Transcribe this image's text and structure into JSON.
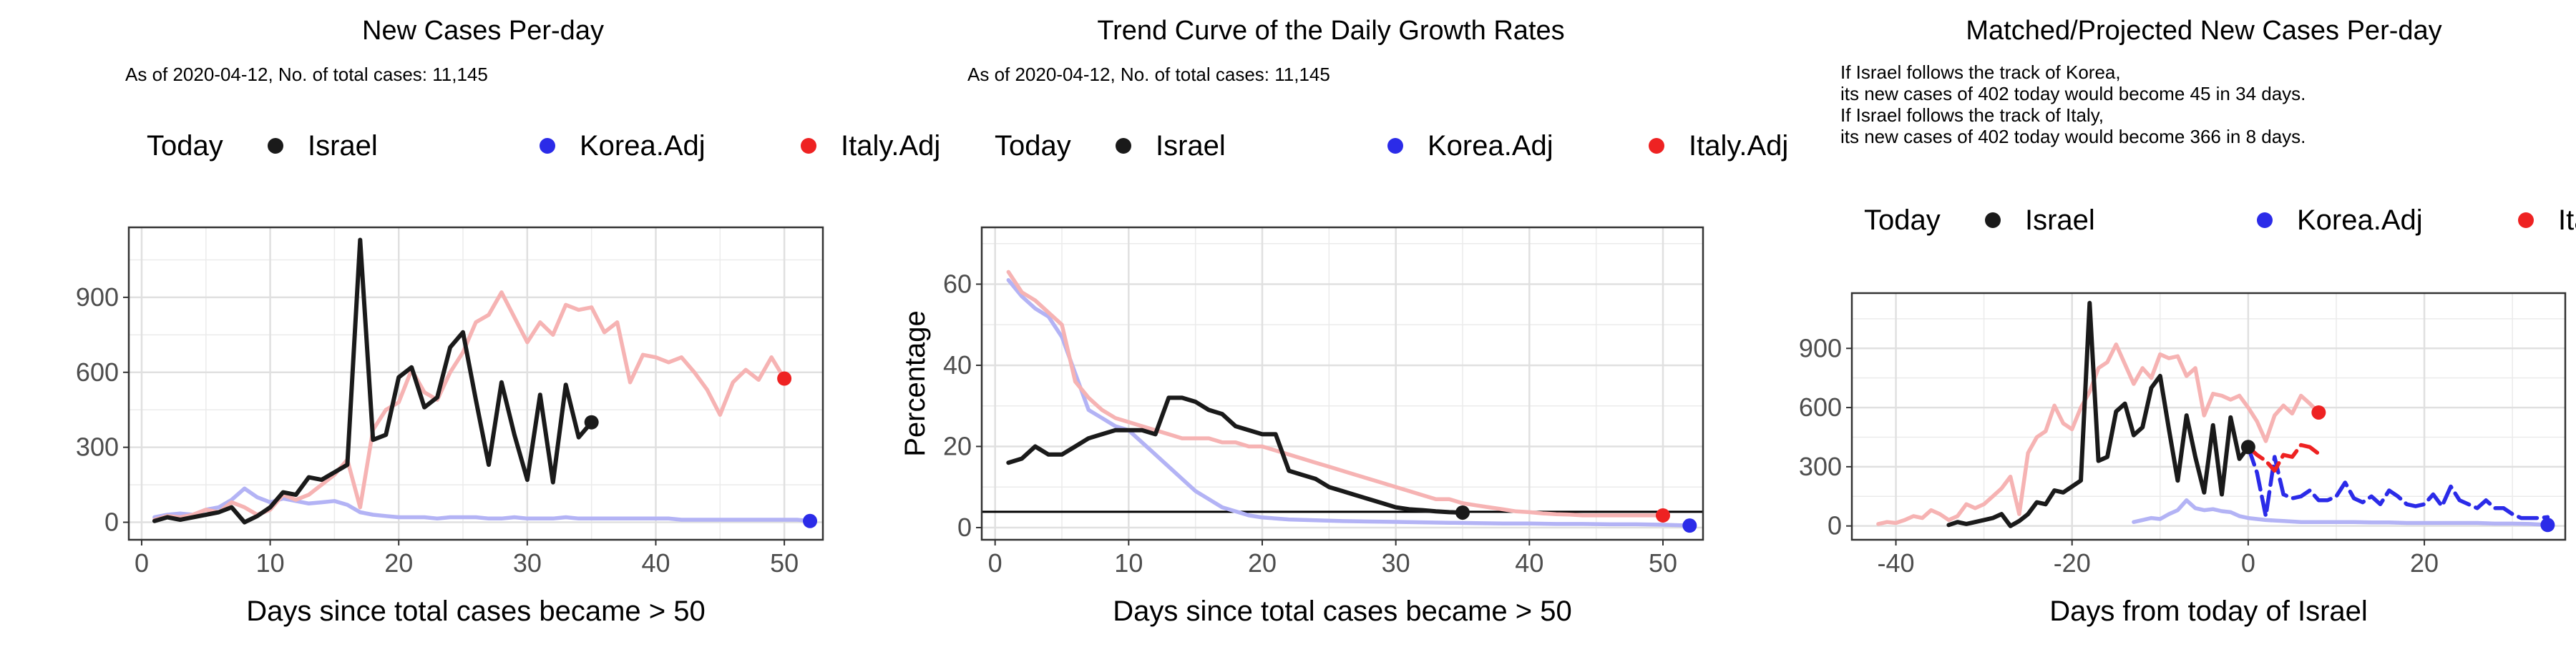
{
  "colors": {
    "israel": "#1a1a1a",
    "korea": "#2b2be8",
    "korea_light": "#b3b3f5",
    "italy": "#ee2222",
    "italy_light": "#f6b3b3",
    "grid": "#ebebeb",
    "border": "#333333"
  },
  "chart_data": [
    {
      "type": "line",
      "title": "New Cases Per-day",
      "subtitle": "As of 2020-04-12, No. of total cases: 11,145",
      "xlabel": "Days since total cases became > 50",
      "ylabel": "",
      "xlim": [
        -1,
        53
      ],
      "ylim": [
        -70,
        1180
      ],
      "xticks": [
        0,
        10,
        20,
        30,
        40,
        50
      ],
      "yticks": [
        0,
        300,
        600,
        900
      ],
      "grid": true,
      "legend": {
        "title": "Today",
        "placement": "top",
        "entries": [
          "Israel",
          "Korea.Adj",
          "Italy.Adj"
        ]
      },
      "series": [
        {
          "name": "Korea.Adj",
          "x": [
            1,
            2,
            3,
            4,
            5,
            6,
            7,
            8,
            9,
            10,
            11,
            12,
            13,
            14,
            15,
            16,
            17,
            18,
            19,
            20,
            21,
            22,
            23,
            24,
            25,
            26,
            27,
            28,
            29,
            30,
            31,
            32,
            33,
            34,
            35,
            36,
            37,
            38,
            39,
            40,
            41,
            42,
            43,
            44,
            45,
            46,
            47,
            48,
            49,
            50,
            51,
            52
          ],
          "y": [
            20,
            30,
            35,
            30,
            50,
            60,
            90,
            135,
            100,
            80,
            95,
            85,
            75,
            80,
            85,
            70,
            40,
            30,
            25,
            20,
            20,
            20,
            15,
            20,
            20,
            20,
            15,
            15,
            20,
            15,
            15,
            15,
            20,
            15,
            15,
            15,
            15,
            15,
            15,
            15,
            15,
            10,
            10,
            10,
            10,
            10,
            10,
            10,
            10,
            10,
            10,
            5
          ]
        },
        {
          "name": "Italy.Adj",
          "x": [
            1,
            2,
            3,
            4,
            5,
            6,
            7,
            8,
            9,
            10,
            11,
            12,
            13,
            14,
            15,
            16,
            17,
            18,
            19,
            20,
            21,
            22,
            23,
            24,
            25,
            26,
            27,
            28,
            29,
            30,
            31,
            32,
            33,
            34,
            35,
            36,
            37,
            38,
            39,
            40,
            41,
            42,
            43,
            44,
            45,
            46,
            47,
            48,
            49,
            50
          ],
          "y": [
            10,
            25,
            20,
            30,
            50,
            40,
            80,
            60,
            30,
            50,
            110,
            90,
            110,
            150,
            190,
            250,
            60,
            370,
            450,
            480,
            610,
            520,
            490,
            600,
            680,
            800,
            830,
            920,
            820,
            720,
            800,
            750,
            870,
            850,
            860,
            760,
            800,
            560,
            670,
            660,
            640,
            660,
            600,
            530,
            430,
            560,
            610,
            570,
            660,
            575
          ]
        },
        {
          "name": "Israel",
          "x": [
            1,
            2,
            3,
            4,
            5,
            6,
            7,
            8,
            9,
            10,
            11,
            12,
            13,
            14,
            15,
            16,
            17,
            18,
            19,
            20,
            21,
            22,
            23,
            24,
            25,
            26,
            27,
            28,
            29,
            30,
            31,
            32,
            33,
            34,
            35
          ],
          "y": [
            5,
            20,
            10,
            20,
            30,
            40,
            60,
            0,
            25,
            60,
            120,
            110,
            180,
            170,
            200,
            230,
            1130,
            330,
            350,
            580,
            620,
            460,
            500,
            700,
            760,
            490,
            230,
            560,
            350,
            170,
            510,
            160,
            550,
            340,
            400
          ]
        }
      ],
      "today_points": [
        {
          "name": "Italy.Adj",
          "x": 50,
          "y": 575
        },
        {
          "name": "Korea.Adj",
          "x": 52,
          "y": 5
        },
        {
          "name": "Israel",
          "x": 35,
          "y": 400
        }
      ]
    },
    {
      "type": "line",
      "title": "Trend Curve of the Daily Growth Rates",
      "subtitle": "As of 2020-04-12, No. of total cases: 11,145",
      "xlabel": "Days since total cases became > 50",
      "ylabel": "Percentage",
      "xlim": [
        -1,
        53
      ],
      "ylim": [
        -3,
        74
      ],
      "xticks": [
        0,
        10,
        20,
        30,
        40,
        50
      ],
      "yticks": [
        0,
        20,
        40,
        60
      ],
      "grid": true,
      "hline": 3.9,
      "legend": {
        "title": "Today",
        "placement": "top",
        "entries": [
          "Israel",
          "Korea.Adj",
          "Italy.Adj"
        ]
      },
      "series": [
        {
          "name": "Korea.Adj",
          "x": [
            1,
            2,
            3,
            4,
            5,
            6,
            7,
            8,
            9,
            10,
            11,
            12,
            13,
            14,
            15,
            16,
            17,
            18,
            19,
            20,
            22,
            24,
            26,
            28,
            30,
            32,
            34,
            36,
            38,
            40,
            42,
            44,
            46,
            48,
            50,
            52
          ],
          "y": [
            61,
            57,
            54,
            52,
            47,
            38,
            29,
            27,
            25,
            24,
            21,
            18,
            15,
            12,
            9,
            7,
            5,
            4,
            3,
            2.5,
            2,
            1.8,
            1.6,
            1.5,
            1.4,
            1.3,
            1.2,
            1.1,
            1,
            1,
            0.9,
            0.9,
            0.8,
            0.8,
            0.7,
            0.5
          ]
        },
        {
          "name": "Italy.Adj",
          "x": [
            1,
            2,
            3,
            4,
            5,
            6,
            7,
            8,
            9,
            10,
            11,
            12,
            13,
            14,
            15,
            16,
            17,
            18,
            19,
            20,
            21,
            22,
            23,
            24,
            25,
            26,
            27,
            28,
            29,
            30,
            31,
            32,
            33,
            34,
            35,
            36,
            37,
            38,
            39,
            40,
            41,
            42,
            43,
            44,
            45,
            46,
            47,
            48,
            49,
            50
          ],
          "y": [
            63,
            58,
            56,
            53,
            50,
            36,
            32,
            29,
            27,
            26,
            25,
            24,
            23,
            22,
            22,
            22,
            21,
            21,
            20,
            20,
            19,
            18,
            17,
            16,
            15,
            14,
            13,
            12,
            11,
            10,
            9,
            8,
            7,
            7,
            6,
            5.5,
            5,
            4.5,
            4,
            3.8,
            3.5,
            3.3,
            3.2,
            3,
            3,
            3,
            3,
            3,
            3,
            3
          ]
        },
        {
          "name": "Israel",
          "x": [
            1,
            2,
            3,
            4,
            5,
            6,
            7,
            8,
            9,
            10,
            11,
            12,
            13,
            14,
            15,
            16,
            17,
            18,
            19,
            20,
            21,
            22,
            23,
            24,
            25,
            26,
            27,
            28,
            29,
            30,
            31,
            32,
            33,
            34,
            35
          ],
          "y": [
            16,
            17,
            20,
            18,
            18,
            20,
            22,
            23,
            24,
            24,
            24,
            23,
            32,
            32,
            31,
            29,
            28,
            25,
            24,
            23,
            23,
            14,
            13,
            12,
            10,
            9,
            8,
            7,
            6,
            5,
            4.5,
            4.3,
            4,
            3.8,
            3.7
          ]
        }
      ],
      "today_points": [
        {
          "name": "Italy.Adj",
          "x": 50,
          "y": 3
        },
        {
          "name": "Korea.Adj",
          "x": 52,
          "y": 0.5
        },
        {
          "name": "Israel",
          "x": 35,
          "y": 3.7
        }
      ]
    },
    {
      "type": "line",
      "title": "Matched/Projected New Cases Per-day",
      "subtitle_lines": [
        "If Israel follows the track of Korea,",
        "its new cases of 402 today would become 45 in 34 days.",
        "If Israel follows the track of Italy,",
        "its new cases of 402 today would become 366 in 8 days."
      ],
      "xlabel": "Days from today of Israel",
      "ylabel": "",
      "xlim": [
        -45,
        36
      ],
      "ylim": [
        -70,
        1180
      ],
      "xticks": [
        -40,
        -20,
        0,
        20
      ],
      "yticks": [
        0,
        300,
        600,
        900
      ],
      "grid": true,
      "legend": {
        "title": "Today",
        "placement": "top",
        "entries": [
          "Israel",
          "Korea.Adj",
          "Italy.Adj"
        ]
      },
      "series": [
        {
          "name": "Korea.Adj",
          "x": [
            -13,
            -12,
            -11,
            -10,
            -9,
            -8,
            -7,
            -6,
            -5,
            -4,
            -3,
            -2,
            -1,
            0,
            2,
            4,
            6,
            8,
            10,
            12,
            14,
            16,
            18,
            20,
            22,
            24,
            26,
            28,
            30,
            32,
            34
          ],
          "y": [
            20,
            30,
            40,
            35,
            60,
            80,
            130,
            90,
            80,
            85,
            75,
            70,
            50,
            40,
            30,
            25,
            20,
            20,
            20,
            20,
            18,
            18,
            15,
            15,
            15,
            15,
            15,
            12,
            12,
            10,
            5
          ]
        },
        {
          "name": "Italy.Adj",
          "x": [
            -42,
            -41,
            -40,
            -39,
            -38,
            -37,
            -36,
            -35,
            -34,
            -33,
            -32,
            -31,
            -30,
            -29,
            -28,
            -27,
            -26,
            -25,
            -24,
            -23,
            -22,
            -21,
            -20,
            -19,
            -18,
            -17,
            -16,
            -15,
            -14,
            -13,
            -12,
            -11,
            -10,
            -9,
            -8,
            -7,
            -6,
            -5,
            -4,
            -3,
            -2,
            -1,
            0,
            1,
            2,
            3,
            4,
            5,
            6,
            7,
            8
          ],
          "y": [
            10,
            20,
            15,
            30,
            50,
            40,
            80,
            60,
            30,
            50,
            110,
            90,
            110,
            150,
            190,
            250,
            60,
            370,
            450,
            480,
            610,
            520,
            490,
            600,
            680,
            800,
            830,
            920,
            820,
            720,
            800,
            750,
            870,
            850,
            860,
            760,
            800,
            560,
            670,
            660,
            640,
            660,
            600,
            530,
            430,
            560,
            610,
            570,
            660,
            620,
            575
          ]
        },
        {
          "name": "Israel",
          "x": [
            -34,
            -33,
            -32,
            -31,
            -30,
            -29,
            -28,
            -27,
            -26,
            -25,
            -24,
            -23,
            -22,
            -21,
            -20,
            -19,
            -18,
            -17,
            -16,
            -15,
            -14,
            -13,
            -12,
            -11,
            -10,
            -9,
            -8,
            -7,
            -6,
            -5,
            -4,
            -3,
            -2,
            -1,
            0
          ],
          "y": [
            5,
            20,
            10,
            20,
            30,
            40,
            60,
            0,
            25,
            60,
            120,
            110,
            180,
            170,
            200,
            230,
            1130,
            330,
            350,
            580,
            620,
            460,
            500,
            700,
            760,
            490,
            230,
            560,
            350,
            170,
            510,
            160,
            550,
            340,
            400
          ]
        },
        {
          "name": "Korea.Adj (projected)",
          "projected": true,
          "x": [
            0,
            1,
            2,
            3,
            4,
            5,
            6,
            7,
            8,
            9,
            10,
            11,
            12,
            13,
            14,
            15,
            16,
            17,
            18,
            19,
            20,
            21,
            22,
            23,
            24,
            25,
            26,
            27,
            28,
            29,
            30,
            31,
            32,
            33,
            34
          ],
          "y": [
            400,
            270,
            50,
            350,
            160,
            140,
            150,
            180,
            130,
            130,
            150,
            220,
            140,
            120,
            150,
            110,
            180,
            150,
            110,
            100,
            110,
            160,
            100,
            200,
            130,
            110,
            90,
            130,
            90,
            90,
            60,
            40,
            40,
            40,
            45
          ]
        },
        {
          "name": "Italy.Adj (projected)",
          "projected": true,
          "x": [
            0,
            1,
            2,
            3,
            4,
            5,
            6,
            7,
            8
          ],
          "y": [
            400,
            360,
            330,
            280,
            360,
            350,
            410,
            400,
            366
          ]
        }
      ],
      "today_points": [
        {
          "name": "Italy.Adj",
          "x": 8,
          "y": 575
        },
        {
          "name": "Korea.Adj",
          "x": 34,
          "y": 5
        },
        {
          "name": "Israel",
          "x": 0,
          "y": 400
        }
      ]
    }
  ]
}
